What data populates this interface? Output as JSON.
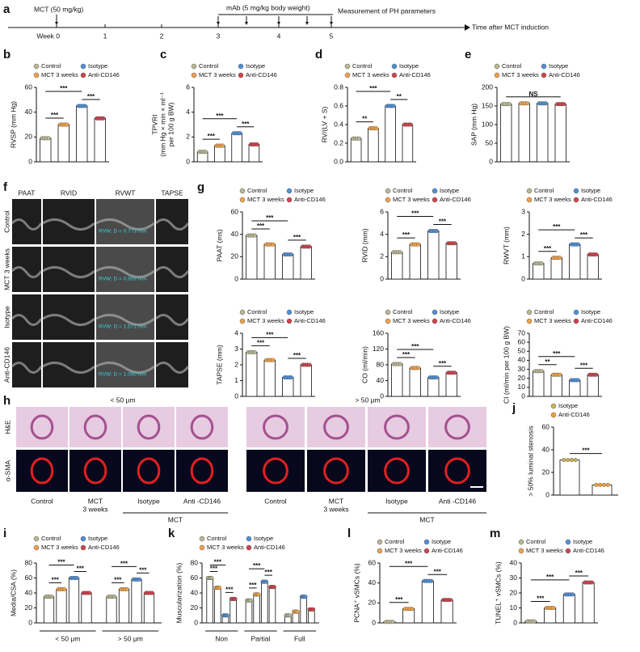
{
  "timeline": {
    "panel": "a",
    "mct": "MCT (50 mg/kg)",
    "mab": "mAb (5 mg/kg body weight)",
    "measure": "Measurement of PH parameters",
    "weeks": [
      "Week 0",
      "1",
      "2",
      "3",
      "4",
      "5"
    ],
    "axis": "Time after MCT induction"
  },
  "echo": {
    "panel": "f",
    "columns": [
      "PAAT",
      "RVID",
      "RVWT",
      "TAPSE"
    ],
    "rows": [
      "Control",
      "MCT 3 weeks",
      "Isotype",
      "Anti-CD146"
    ],
    "rvw": [
      "RVW; D = 0.773 mm",
      "RVW; D = 0.959 mm",
      "RVW; D = 1.571 mm",
      "RVW; D = 1.090 mm"
    ]
  },
  "histology": {
    "panel": "h",
    "sizes": [
      "< 50 μm",
      "> 50 μm"
    ],
    "stains": [
      "H&E",
      "α-SMA"
    ],
    "captions": [
      [
        "Control"
      ],
      [
        "MCT",
        "3 weeks"
      ],
      [
        "Isotype"
      ],
      [
        "Anti -CD146"
      ]
    ],
    "group": "MCT"
  },
  "chart_data": [
    {
      "type": "bar",
      "panel": "b",
      "ylabel": [
        "RVSP (mm Hg)"
      ],
      "categories": [
        "Control",
        "MCT 3 weeks",
        "Isotype",
        "Anti-CD146"
      ],
      "colors": [
        "#b9b893",
        "#f0a24a",
        "#4f8fd6",
        "#d0434c"
      ],
      "values": [
        19,
        30,
        45,
        35
      ],
      "ylim": [
        0,
        60
      ],
      "yticks": [
        0,
        20,
        40,
        60
      ],
      "annotations": [
        "***",
        "***",
        "***"
      ]
    },
    {
      "type": "bar",
      "panel": "c",
      "ylabel": [
        "TPVRI",
        "(mm Hg × min × ml⁻¹",
        "per 100 g BW)"
      ],
      "categories": [
        "Control",
        "MCT 3 weeks",
        "Isotype",
        "Anti-CD146"
      ],
      "colors": [
        "#b9b893",
        "#f0a24a",
        "#4f8fd6",
        "#d0434c"
      ],
      "values": [
        0.8,
        1.3,
        2.3,
        1.4
      ],
      "ylim": [
        0,
        6
      ],
      "yticks": [
        0,
        2,
        4,
        6
      ],
      "annotations": [
        "***",
        "***",
        "***"
      ]
    },
    {
      "type": "bar",
      "panel": "d",
      "ylabel": [
        "RV/(LV + S)"
      ],
      "categories": [
        "Control",
        "MCT 3 weeks",
        "Isotype",
        "Anti-CD146"
      ],
      "colors": [
        "#b9b893",
        "#f0a24a",
        "#4f8fd6",
        "#d0434c"
      ],
      "values": [
        0.25,
        0.36,
        0.6,
        0.4
      ],
      "ylim": [
        0,
        0.8
      ],
      "yticks": [
        {
          "value": 0,
          "label": "0.0"
        },
        0.2,
        0.4,
        0.6,
        0.8
      ],
      "annotations": [
        "**",
        "***",
        "**"
      ]
    },
    {
      "type": "bar",
      "panel": "e",
      "ylabel": [
        "SAP (mm Hg)"
      ],
      "categories": [
        "Control",
        "MCT 3 weeks",
        "Isotype",
        "Anti-CD146"
      ],
      "colors": [
        "#b9b893",
        "#f0a24a",
        "#4f8fd6",
        "#d0434c"
      ],
      "values": [
        155,
        157,
        157,
        155
      ],
      "ylim": [
        0,
        200
      ],
      "yticks": [
        0,
        50,
        100,
        150,
        200
      ],
      "annotations": [
        "NS"
      ]
    },
    {
      "type": "bar",
      "panel": "g",
      "ylabel": [
        "PAAT (ms)"
      ],
      "categories": [
        "Control",
        "MCT 3 weeks",
        "Isotype",
        "Anti-CD146"
      ],
      "colors": [
        "#b9b893",
        "#f0a24a",
        "#4f8fd6",
        "#d0434c"
      ],
      "values": [
        39,
        31,
        22,
        29
      ],
      "ylim": [
        0,
        60
      ],
      "yticks": [
        0,
        20,
        40,
        60
      ],
      "annotations": [
        "***",
        "***",
        "***"
      ]
    },
    {
      "type": "bar",
      "ylabel": [
        "RVID (mm)"
      ],
      "categories": [
        "Control",
        "MCT 3 weeks",
        "Isotype",
        "Anti-CD146"
      ],
      "colors": [
        "#b9b893",
        "#f0a24a",
        "#4f8fd6",
        "#d0434c"
      ],
      "values": [
        2.4,
        3.1,
        4.3,
        3.2
      ],
      "ylim": [
        0,
        6
      ],
      "yticks": [
        0,
        2,
        4,
        6
      ],
      "annotations": [
        "***",
        "***",
        "***"
      ]
    },
    {
      "type": "bar",
      "ylabel": [
        "RWVT (mm)"
      ],
      "categories": [
        "Control",
        "MCT 3 weeks",
        "Isotype",
        "Anti-CD146"
      ],
      "colors": [
        "#b9b893",
        "#f0a24a",
        "#4f8fd6",
        "#d0434c"
      ],
      "values": [
        0.7,
        0.95,
        1.55,
        1.1
      ],
      "ylim": [
        0,
        3
      ],
      "yticks": [
        0,
        1,
        2,
        3
      ],
      "annotations": [
        "***",
        "***",
        "***"
      ]
    },
    {
      "type": "bar",
      "ylabel": [
        "TAPSE (mm)"
      ],
      "categories": [
        "Control",
        "MCT 3 weeks",
        "Isotype",
        "Anti-CD146"
      ],
      "colors": [
        "#b9b893",
        "#f0a24a",
        "#4f8fd6",
        "#d0434c"
      ],
      "values": [
        2.8,
        2.3,
        1.2,
        2.0
      ],
      "ylim": [
        0,
        4
      ],
      "yticks": [
        0,
        1,
        2,
        3,
        4
      ],
      "annotations": [
        "***",
        "***",
        "***"
      ]
    },
    {
      "type": "bar",
      "ylabel": [
        "CO (ml/min)"
      ],
      "categories": [
        "Control",
        "MCT 3 weeks",
        "Isotype",
        "Anti-CD146"
      ],
      "colors": [
        "#b9b893",
        "#f0a24a",
        "#4f8fd6",
        "#d0434c"
      ],
      "values": [
        82,
        72,
        48,
        60
      ],
      "ylim": [
        0,
        160
      ],
      "yticks": [
        0,
        40,
        80,
        120,
        160
      ],
      "annotations": [
        "***",
        "***",
        "***"
      ]
    },
    {
      "type": "bar",
      "ylabel": [
        "CI (ml/min per 100 g BW)"
      ],
      "categories": [
        "Control",
        "MCT 3 weeks",
        "Isotype",
        "Anti-CD146"
      ],
      "colors": [
        "#b9b893",
        "#f0a24a",
        "#4f8fd6",
        "#d0434c"
      ],
      "values": [
        28,
        24,
        18,
        24
      ],
      "ylim": [
        0,
        70
      ],
      "yticks": [
        0,
        10,
        20,
        30,
        40,
        50,
        60,
        70
      ],
      "annotations": [
        "**",
        "***",
        "***"
      ]
    },
    {
      "type": "bar",
      "panel": "j",
      "ylabel": [
        "> 50% luminal stenosis"
      ],
      "categories": [
        "Isotype",
        "Anti-CD146"
      ],
      "colors": [
        "#c9b458",
        "#f0a040"
      ],
      "values": [
        31,
        9
      ],
      "ylim": [
        0,
        60
      ],
      "yticks": [
        0,
        20,
        40,
        60
      ],
      "annotations": [
        "***"
      ]
    },
    {
      "type": "grouped_bar",
      "panel": "i",
      "ylabel": [
        "Media/CSA (%)"
      ],
      "categories": [
        "< 50 μm",
        "> 50 μm"
      ],
      "series": [
        {
          "name": "Control",
          "color": "#b9b893",
          "values": [
            35,
            35
          ]
        },
        {
          "name": "MCT 3 weeks",
          "color": "#f0a24a",
          "values": [
            45,
            45
          ]
        },
        {
          "name": "Isotype",
          "color": "#4f8fd6",
          "values": [
            60,
            58
          ]
        },
        {
          "name": "Anti-CD146",
          "color": "#d0434c",
          "values": [
            40,
            40
          ]
        }
      ],
      "ylim": [
        0,
        80
      ],
      "yticks": [
        0,
        20,
        40,
        60,
        80
      ],
      "annotations": [
        "***",
        "***",
        "***",
        "***",
        "***",
        "***"
      ]
    },
    {
      "type": "grouped_bar",
      "panel": "k",
      "ylabel": [
        "Muscularization (%)"
      ],
      "categories": [
        "Non",
        "Partial",
        "Full"
      ],
      "series": [
        {
          "name": "Control",
          "color": "#b9b893",
          "values": [
            60,
            30,
            10
          ]
        },
        {
          "name": "MCT 3 weeks",
          "color": "#f0a24a",
          "values": [
            47,
            38,
            15
          ]
        },
        {
          "name": "Isotype",
          "color": "#4f8fd6",
          "values": [
            10,
            55,
            35
          ]
        },
        {
          "name": "Anti-CD146",
          "color": "#d0434c",
          "values": [
            32,
            48,
            18
          ]
        }
      ],
      "ylim": [
        0,
        80
      ],
      "yticks": [
        0,
        20,
        40,
        60,
        80
      ],
      "annotations": [
        "***",
        "***",
        "***",
        "***",
        "***",
        "***"
      ]
    },
    {
      "type": "bar",
      "panel": "l",
      "ylabel": [
        "PCNA⁺ vSMCs (%)"
      ],
      "categories": [
        "Control",
        "MCT 3 weeks",
        "Isotype",
        "Anti-CD146"
      ],
      "colors": [
        "#b9b893",
        "#f0a24a",
        "#4f8fd6",
        "#d0434c"
      ],
      "values": [
        1,
        14,
        42,
        23
      ],
      "ylim": [
        0,
        60
      ],
      "yticks": [
        0,
        20,
        40,
        60
      ],
      "annotations": [
        "***",
        "***",
        "***"
      ]
    },
    {
      "type": "bar",
      "panel": "m",
      "ylabel": [
        "TUNEL⁺ vSMCs (%)"
      ],
      "categories": [
        "Control",
        "MCT 3 weeks",
        "Isotype",
        "Anti-CD146"
      ],
      "colors": [
        "#b9b893",
        "#f0a24a",
        "#4f8fd6",
        "#d0434c"
      ],
      "values": [
        1,
        10,
        19,
        27
      ],
      "ylim": [
        0,
        40
      ],
      "yticks": [
        0,
        10,
        20,
        30,
        40
      ],
      "annotations": [
        "***",
        "***",
        "***"
      ]
    }
  ]
}
